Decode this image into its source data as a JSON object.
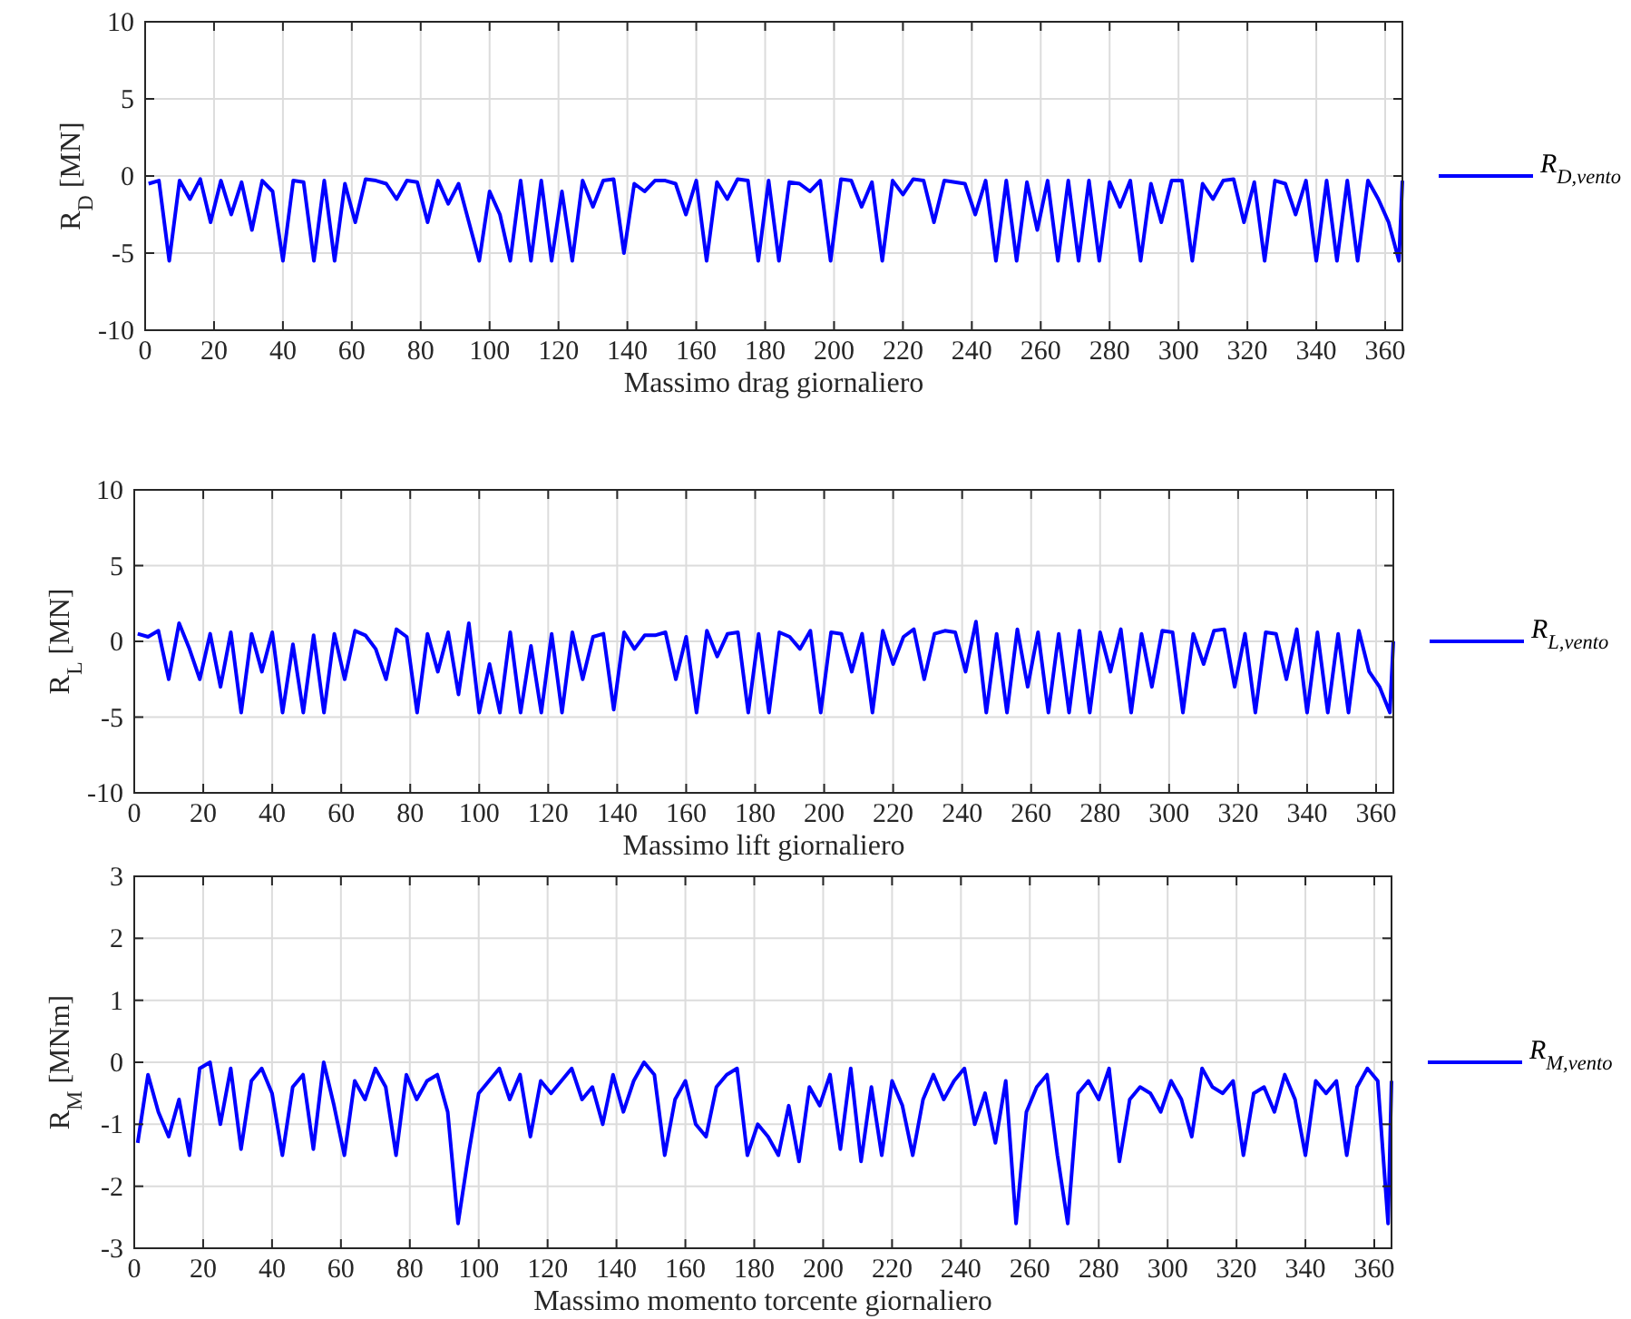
{
  "chart_data": [
    {
      "type": "line",
      "xlabel": "Massimo drag giornaliero",
      "ylabel": "R$_{D}$ [MN]",
      "xlim": [
        0,
        365
      ],
      "ylim": [
        -10,
        10
      ],
      "xticks": [
        0,
        20,
        40,
        60,
        80,
        100,
        120,
        140,
        160,
        180,
        200,
        220,
        240,
        260,
        280,
        300,
        320,
        340,
        360
      ],
      "yticks": [
        -10,
        -5,
        0,
        5,
        10
      ],
      "grid": true,
      "legend": "right",
      "x": [
        1,
        4,
        7,
        10,
        13,
        16,
        19,
        22,
        25,
        28,
        31,
        34,
        37,
        40,
        43,
        46,
        49,
        52,
        55,
        58,
        61,
        64,
        67,
        70,
        73,
        76,
        79,
        82,
        85,
        88,
        91,
        94,
        97,
        100,
        103,
        106,
        109,
        112,
        115,
        118,
        121,
        124,
        127,
        130,
        133,
        136,
        139,
        142,
        145,
        148,
        151,
        154,
        157,
        160,
        163,
        166,
        169,
        172,
        175,
        178,
        181,
        184,
        187,
        190,
        193,
        196,
        199,
        202,
        205,
        208,
        211,
        214,
        217,
        220,
        223,
        226,
        229,
        232,
        235,
        238,
        241,
        244,
        247,
        250,
        253,
        256,
        259,
        262,
        265,
        268,
        271,
        274,
        277,
        280,
        283,
        286,
        289,
        292,
        295,
        298,
        301,
        304,
        307,
        310,
        313,
        316,
        319,
        322,
        325,
        328,
        331,
        334,
        337,
        340,
        343,
        346,
        349,
        352,
        355,
        358,
        361,
        364,
        365
      ],
      "series": [
        {
          "name": "R$_{D,vento}$",
          "color": "#0000ff",
          "values": [
            -0.5,
            -0.3,
            -5.5,
            -0.3,
            -1.5,
            -0.2,
            -3,
            -0.3,
            -2.5,
            -0.4,
            -3.5,
            -0.3,
            -1,
            -5.5,
            -0.3,
            -0.4,
            -5.5,
            -0.3,
            -5.5,
            -0.5,
            -3,
            -0.2,
            -0.3,
            -0.5,
            -1.5,
            -0.3,
            -0.4,
            -3,
            -0.3,
            -1.8,
            -0.5,
            -3,
            -5.5,
            -1,
            -2.5,
            -5.5,
            -0.3,
            -5.5,
            -0.3,
            -5.5,
            -1,
            -5.5,
            -0.3,
            -2,
            -0.3,
            -0.2,
            -5,
            -0.5,
            -1,
            -0.3,
            -0.3,
            -0.5,
            -2.5,
            -0.3,
            -5.5,
            -0.4,
            -1.5,
            -0.2,
            -0.3,
            -5.5,
            -0.3,
            -5.5,
            -0.4,
            -0.5,
            -1,
            -0.3,
            -5.5,
            -0.2,
            -0.3,
            -2,
            -0.4,
            -5.5,
            -0.3,
            -1.2,
            -0.2,
            -0.3,
            -3,
            -0.3,
            -0.4,
            -0.5,
            -2.5,
            -0.3,
            -5.5,
            -0.3,
            -5.5,
            -0.4,
            -3.5,
            -0.3,
            -5.5,
            -0.3,
            -5.5,
            -0.3,
            -5.5,
            -0.4,
            -2,
            -0.3,
            -5.5,
            -0.5,
            -3,
            -0.3,
            -0.3,
            -5.5,
            -0.5,
            -1.5,
            -0.3,
            -0.2,
            -3,
            -0.4,
            -5.5,
            -0.3,
            -0.5,
            -2.5,
            -0.3,
            -5.5,
            -0.3,
            -5.5,
            -0.3,
            -5.5,
            -0.3,
            -1.5,
            -3,
            -5.5,
            -0.3
          ]
        }
      ]
    },
    {
      "type": "line",
      "xlabel": "Massimo lift giornaliero",
      "ylabel": "R$_{L}$ [MN]",
      "xlim": [
        0,
        365
      ],
      "ylim": [
        -10,
        10
      ],
      "xticks": [
        0,
        20,
        40,
        60,
        80,
        100,
        120,
        140,
        160,
        180,
        200,
        220,
        240,
        260,
        280,
        300,
        320,
        340,
        360
      ],
      "yticks": [
        -10,
        -5,
        0,
        5,
        10
      ],
      "grid": true,
      "legend": "right",
      "x": [
        1,
        4,
        7,
        10,
        13,
        16,
        19,
        22,
        25,
        28,
        31,
        34,
        37,
        40,
        43,
        46,
        49,
        52,
        55,
        58,
        61,
        64,
        67,
        70,
        73,
        76,
        79,
        82,
        85,
        88,
        91,
        94,
        97,
        100,
        103,
        106,
        109,
        112,
        115,
        118,
        121,
        124,
        127,
        130,
        133,
        136,
        139,
        142,
        145,
        148,
        151,
        154,
        157,
        160,
        163,
        166,
        169,
        172,
        175,
        178,
        181,
        184,
        187,
        190,
        193,
        196,
        199,
        202,
        205,
        208,
        211,
        214,
        217,
        220,
        223,
        226,
        229,
        232,
        235,
        238,
        241,
        244,
        247,
        250,
        253,
        256,
        259,
        262,
        265,
        268,
        271,
        274,
        277,
        280,
        283,
        286,
        289,
        292,
        295,
        298,
        301,
        304,
        307,
        310,
        313,
        316,
        319,
        322,
        325,
        328,
        331,
        334,
        337,
        340,
        343,
        346,
        349,
        352,
        355,
        358,
        361,
        364,
        365
      ],
      "series": [
        {
          "name": "R$_{L,vento}$",
          "color": "#0000ff",
          "values": [
            0.5,
            0.3,
            0.7,
            -2.5,
            1.2,
            -0.5,
            -2.5,
            0.5,
            -3,
            0.6,
            -4.7,
            0.5,
            -2,
            0.6,
            -4.7,
            -0.2,
            -4.7,
            0.4,
            -4.7,
            0.5,
            -2.5,
            0.7,
            0.4,
            -0.5,
            -2.5,
            0.8,
            0.3,
            -4.7,
            0.5,
            -2,
            0.6,
            -3.5,
            1.2,
            -4.7,
            -1.5,
            -4.7,
            0.6,
            -4.7,
            -0.3,
            -4.7,
            0.5,
            -4.7,
            0.6,
            -2.5,
            0.3,
            0.5,
            -4.5,
            0.6,
            -0.5,
            0.4,
            0.4,
            0.6,
            -2.5,
            0.3,
            -4.7,
            0.7,
            -1,
            0.5,
            0.6,
            -4.7,
            0.5,
            -4.7,
            0.6,
            0.3,
            -0.5,
            0.7,
            -4.7,
            0.6,
            0.5,
            -2,
            0.5,
            -4.7,
            0.7,
            -1.5,
            0.3,
            0.8,
            -2.5,
            0.5,
            0.7,
            0.6,
            -2,
            1.3,
            -4.7,
            0.5,
            -4.7,
            0.8,
            -3,
            0.6,
            -4.7,
            0.5,
            -4.7,
            0.7,
            -4.7,
            0.6,
            -2,
            0.8,
            -4.7,
            0.5,
            -3,
            0.7,
            0.6,
            -4.7,
            0.5,
            -1.5,
            0.7,
            0.8,
            -3,
            0.5,
            -4.7,
            0.6,
            0.5,
            -2.5,
            0.8,
            -4.7,
            0.6,
            -4.7,
            0.5,
            -4.7,
            0.7,
            -2,
            -3,
            -4.7,
            0
          ]
        }
      ]
    },
    {
      "type": "line",
      "xlabel": "Massimo momento torcente giornaliero",
      "ylabel": "R$_{M}$ [MNm]",
      "xlim": [
        0,
        365
      ],
      "ylim": [
        -3,
        3
      ],
      "xticks": [
        0,
        20,
        40,
        60,
        80,
        100,
        120,
        140,
        160,
        180,
        200,
        220,
        240,
        260,
        280,
        300,
        320,
        340,
        360
      ],
      "yticks": [
        -3,
        -2,
        -1,
        0,
        1,
        2,
        3
      ],
      "grid": true,
      "legend": "right",
      "x": [
        1,
        4,
        7,
        10,
        13,
        16,
        19,
        22,
        25,
        28,
        31,
        34,
        37,
        40,
        43,
        46,
        49,
        52,
        55,
        58,
        61,
        64,
        67,
        70,
        73,
        76,
        79,
        82,
        85,
        88,
        91,
        94,
        97,
        100,
        103,
        106,
        109,
        112,
        115,
        118,
        121,
        124,
        127,
        130,
        133,
        136,
        139,
        142,
        145,
        148,
        151,
        154,
        157,
        160,
        163,
        166,
        169,
        172,
        175,
        178,
        181,
        184,
        187,
        190,
        193,
        196,
        199,
        202,
        205,
        208,
        211,
        214,
        217,
        220,
        223,
        226,
        229,
        232,
        235,
        238,
        241,
        244,
        247,
        250,
        253,
        256,
        259,
        262,
        265,
        268,
        271,
        274,
        277,
        280,
        283,
        286,
        289,
        292,
        295,
        298,
        301,
        304,
        307,
        310,
        313,
        316,
        319,
        322,
        325,
        328,
        331,
        334,
        337,
        340,
        343,
        346,
        349,
        352,
        355,
        358,
        361,
        364,
        365
      ],
      "series": [
        {
          "name": "R$_{M,vento}$",
          "color": "#0000ff",
          "values": [
            -1.3,
            -0.2,
            -0.8,
            -1.2,
            -0.6,
            -1.5,
            -0.1,
            0,
            -1,
            -0.1,
            -1.4,
            -0.3,
            -0.1,
            -0.5,
            -1.5,
            -0.4,
            -0.2,
            -1.4,
            0,
            -0.7,
            -1.5,
            -0.3,
            -0.6,
            -0.1,
            -0.4,
            -1.5,
            -0.2,
            -0.6,
            -0.3,
            -0.2,
            -0.8,
            -2.6,
            -1.5,
            -0.5,
            -0.3,
            -0.1,
            -0.6,
            -0.2,
            -1.2,
            -0.3,
            -0.5,
            -0.3,
            -0.1,
            -0.6,
            -0.4,
            -1,
            -0.2,
            -0.8,
            -0.3,
            0,
            -0.2,
            -1.5,
            -0.6,
            -0.3,
            -1,
            -1.2,
            -0.4,
            -0.2,
            -0.1,
            -1.5,
            -1,
            -1.2,
            -1.5,
            -0.7,
            -1.6,
            -0.4,
            -0.7,
            -0.2,
            -1.4,
            -0.1,
            -1.6,
            -0.4,
            -1.5,
            -0.3,
            -0.7,
            -1.5,
            -0.6,
            -0.2,
            -0.6,
            -0.3,
            -0.1,
            -1,
            -0.5,
            -1.3,
            -0.3,
            -2.6,
            -0.8,
            -0.4,
            -0.2,
            -1.5,
            -2.6,
            -0.5,
            -0.3,
            -0.6,
            -0.1,
            -1.6,
            -0.6,
            -0.4,
            -0.5,
            -0.8,
            -0.3,
            -0.6,
            -1.2,
            -0.1,
            -0.4,
            -0.5,
            -0.3,
            -1.5,
            -0.5,
            -0.4,
            -0.8,
            -0.2,
            -0.6,
            -1.5,
            -0.3,
            -0.5,
            -0.3,
            -1.5,
            -0.4,
            -0.1,
            -0.3,
            -2.6,
            -0.3
          ]
        }
      ]
    }
  ]
}
